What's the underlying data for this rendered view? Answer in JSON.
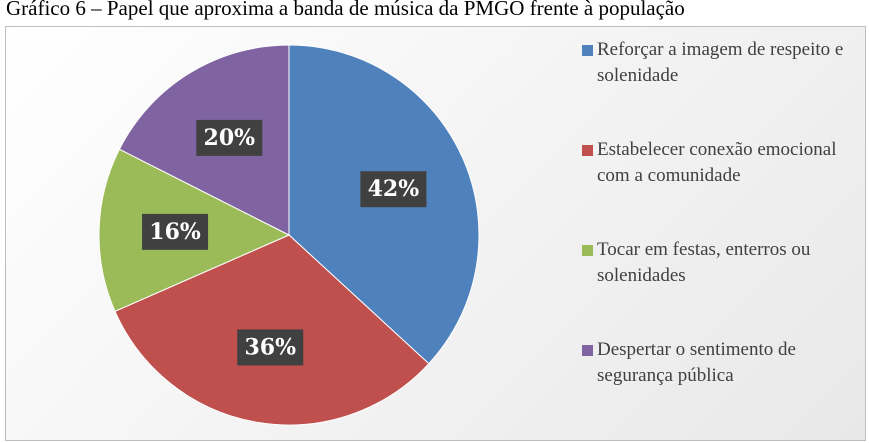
{
  "chart_data": {
    "type": "pie",
    "title": "Gráfico 6 – Papel que aproxima a banda de música da PMGO frente à população",
    "categories": [
      "Reforçar a imagem de respeito e solenidade",
      "Estabelecer conexão emocional com a comunidade",
      "Tocar em festas, enterros ou solenidades",
      "Despertar o sentimento de segurança pública"
    ],
    "values": [
      42,
      36,
      16,
      20
    ],
    "value_labels": [
      "42%",
      "36%",
      "16%",
      "20%"
    ],
    "colors": [
      "#4f81bd",
      "#c0504d",
      "#9bbb59",
      "#8064a2"
    ],
    "legend": "right"
  }
}
